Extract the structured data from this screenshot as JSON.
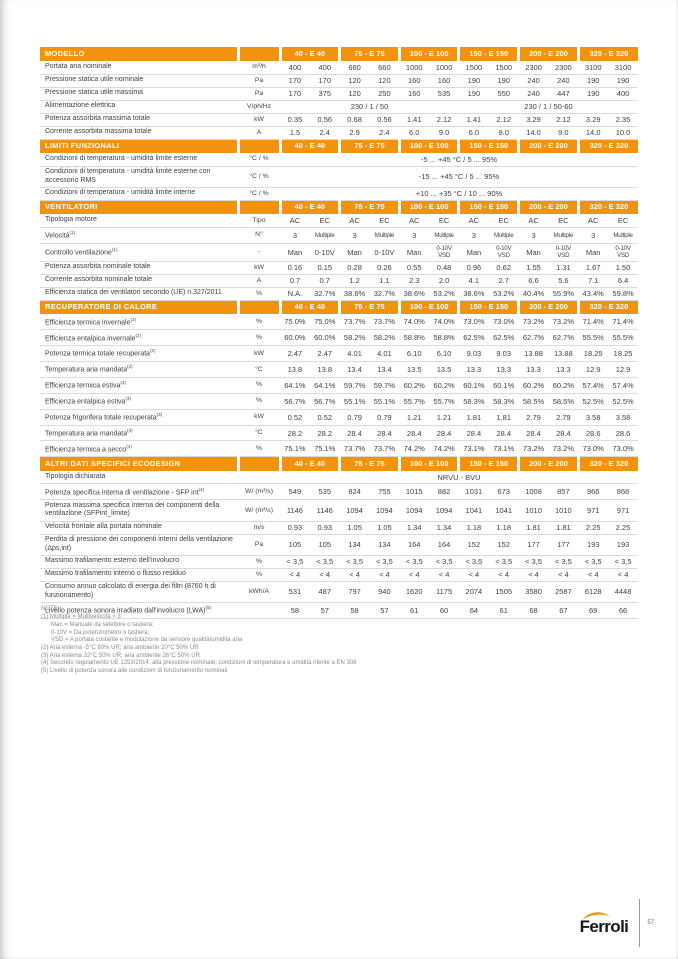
{
  "colors": {
    "accent_orange": "#F1930E",
    "header_text": "#FFFFFF",
    "body_text": "#3F3F3F",
    "note_text": "#8A8A8A"
  },
  "table": {
    "col_groups": [
      "40 - E 40",
      "75 - E 75",
      "100 - E 100",
      "150 - E 150",
      "200 - E 200",
      "320 - E 320"
    ],
    "sections": [
      {
        "title": "MODELLO",
        "rows": [
          {
            "label": "Portata aria nominale",
            "unit": "m³/h",
            "values": [
              "400",
              "400",
              "660",
              "660",
              "1000",
              "1000",
              "1500",
              "1500",
              "2300",
              "2300",
              "3100",
              "3100"
            ]
          },
          {
            "label": "Pressione statica utile nominale",
            "unit": "Pa",
            "values": [
              "170",
              "170",
              "120",
              "120",
              "160",
              "160",
              "190",
              "190",
              "240",
              "240",
              "190",
              "190"
            ]
          },
          {
            "label": "Pressione statica utile massima",
            "unit": "Pa",
            "values": [
              "170",
              "375",
              "120",
              "250",
              "160",
              "535",
              "190",
              "550",
              "240",
              "447",
              "190",
              "400"
            ]
          },
          {
            "label": "Alimentazione elettrica",
            "unit": "V/ph/Hz",
            "merged": [
              {
                "span": 6,
                "text": "230 / 1 / 50"
              },
              {
                "span": 6,
                "text": "230 / 1 / 50-60"
              }
            ]
          },
          {
            "label": "Potenza assorbita massima totale",
            "unit": "kW",
            "values": [
              "0.35",
              "0.56",
              "0.68",
              "0.56",
              "1.41",
              "2.12",
              "1.41",
              "2.12",
              "3.29",
              "2.12",
              "3.29",
              "2.35"
            ]
          },
          {
            "label": "Corrente assorbita massima totale",
            "unit": "A",
            "values": [
              "1.5",
              "2.4",
              "2.9",
              "2.4",
              "6.0",
              "9.0",
              "6.0",
              "9.0",
              "14.0",
              "9.0",
              "14.0",
              "10.0"
            ]
          }
        ]
      },
      {
        "title": "LIMITI FUNZIONALI",
        "rows": [
          {
            "label": "Condizioni di temperatura - umidità limite esterne",
            "unit": "°C / %",
            "merged": [
              {
                "span": 12,
                "text": "-5 ... +45 °C / 5 ... 95%"
              }
            ]
          },
          {
            "label": "Condizioni di temperatura - umidità limite esterne con accessorio RMS",
            "unit": "°C / %",
            "merged": [
              {
                "span": 12,
                "text": "-15 ... +45 °C / 5 ... 95%"
              }
            ]
          },
          {
            "label": "Condizioni di temperatura - umidità limite interne",
            "unit": "°C / %",
            "merged": [
              {
                "span": 12,
                "text": "+10 ... +35 °C / 10 ... 90%"
              }
            ]
          }
        ]
      },
      {
        "title": "VENTILATORI",
        "rows": [
          {
            "label": "Tipologia motore",
            "unit": "Tipo",
            "values": [
              "AC",
              "EC",
              "AC",
              "EC",
              "AC",
              "EC",
              "AC",
              "EC",
              "AC",
              "EC",
              "AC",
              "EC"
            ]
          },
          {
            "label": "Velocità",
            "sup": "(1)",
            "unit": "N°",
            "values": [
              "3",
              "Multiple",
              "3",
              "Multiple",
              "3",
              "Multiple",
              "3",
              "Multiple",
              "3",
              "Multiple",
              "3",
              "Multiple"
            ]
          },
          {
            "label": "Controllo ventilazione",
            "sup": "(1)",
            "unit": "-",
            "values": [
              "Man",
              "0-10V",
              "Man",
              "0-10V",
              "Man",
              "0-10V VSD",
              "Man",
              "0-10V VSD",
              "Man",
              "0-10V VSD",
              "Man",
              "0-10V VSD"
            ]
          },
          {
            "label": "Potenza assorbita nominale totale",
            "unit": "kW",
            "values": [
              "0.16",
              "0.15",
              "0.28",
              "0.26",
              "0.55",
              "0.48",
              "0.96",
              "0.62",
              "1.55",
              "1.31",
              "1.67",
              "1.50"
            ]
          },
          {
            "label": "Corrente assorbita nominale totale",
            "unit": "A",
            "values": [
              "0.7",
              "0.7",
              "1.2",
              "1.1",
              "2.3",
              "2.0",
              "4.1",
              "2.7",
              "6.6",
              "5.6",
              "7.1",
              "6.4"
            ]
          },
          {
            "label": "Efficienza statica dei ventilatori secondo (UE) n.327/2011",
            "unit": "%",
            "values": [
              "N.A.",
              "32.7%",
              "38.6%",
              "32.7%",
              "38.6%",
              "53.2%",
              "38.6%",
              "53.2%",
              "40.4%",
              "55.9%",
              "43.4%",
              "59.8%"
            ]
          }
        ]
      },
      {
        "title": "RECUPERATORE DI CALORE",
        "rows": [
          {
            "label": "Efficienza termica invernale",
            "sup": "(2)",
            "unit": "%",
            "values": [
              "75.0%",
              "75.0%",
              "73.7%",
              "73.7%",
              "74.0%",
              "74.0%",
              "73.0%",
              "73.0%",
              "73.2%",
              "73.2%",
              "71.4%",
              "71.4%"
            ]
          },
          {
            "label": "Efficienza entalpica invernale",
            "sup": "(2)",
            "unit": "%",
            "values": [
              "60.0%",
              "60.0%",
              "58.2%",
              "58.2%",
              "58.8%",
              "58.8%",
              "62.5%",
              "62.5%",
              "62.7%",
              "62.7%",
              "55.5%",
              "55.5%"
            ]
          },
          {
            "label": "Potenza termica totale recuperata",
            "sup": "(2)",
            "unit": "kW",
            "values": [
              "2.47",
              "2.47",
              "4.01",
              "4.01",
              "6.10",
              "6.10",
              "9.03",
              "9.03",
              "13.88",
              "13.88",
              "18.25",
              "18.25"
            ]
          },
          {
            "label": "Temperatura aria mandata",
            "sup": "(2)",
            "unit": "°C",
            "values": [
              "13.8",
              "13.8",
              "13.4",
              "13.4",
              "13.5",
              "13.5",
              "13.3",
              "13.3",
              "13.3",
              "13.3",
              "12.9",
              "12.9"
            ]
          },
          {
            "label": "Efficienza termica estiva",
            "sup": "(3)",
            "unit": "%",
            "values": [
              "64.1%",
              "64.1%",
              "59.7%",
              "59.7%",
              "60.2%",
              "60.2%",
              "60.1%",
              "60.1%",
              "60.2%",
              "60.2%",
              "57.4%",
              "57.4%"
            ]
          },
          {
            "label": "Efficienza entalpica estiva",
            "sup": "(3)",
            "unit": "%",
            "values": [
              "56.7%",
              "56.7%",
              "55.1%",
              "55.1%",
              "55.7%",
              "55.7%",
              "58.3%",
              "58.3%",
              "58.5%",
              "58.5%",
              "52.5%",
              "52.5%"
            ]
          },
          {
            "label": "Potenza frigorifera totale recuperata",
            "sup": "(3)",
            "unit": "kW",
            "values": [
              "0.52",
              "0.52",
              "0.79",
              "0.79",
              "1.21",
              "1.21",
              "1.81",
              "1.81",
              "2.79",
              "2.79",
              "3.58",
              "3.58"
            ]
          },
          {
            "label": "Temperatura aria mandata",
            "sup": "(3)",
            "unit": "°C",
            "values": [
              "28.2",
              "28.2",
              "28.4",
              "28.4",
              "28.4",
              "28.4",
              "28.4",
              "28.4",
              "28.4",
              "28.4",
              "28.6",
              "28.6"
            ]
          },
          {
            "label": "Efficienza termica a secco",
            "sup": "(4)",
            "unit": "%",
            "values": [
              "75.1%",
              "75.1%",
              "73.7%",
              "73.7%",
              "74.2%",
              "74.2%",
              "73.1%",
              "73.1%",
              "73.2%",
              "73.2%",
              "73.0%",
              "73.0%"
            ]
          }
        ]
      },
      {
        "title": "ALTRI DATI SPECIFICI ECODESIGN",
        "rows": [
          {
            "label": "Tipologia dichiarata",
            "unit": "",
            "merged": [
              {
                "span": 12,
                "text": "NRVU - BVU"
              }
            ]
          },
          {
            "label": "Potenza specifica interna di ventilazione - SFP int",
            "sup": "(4)",
            "unit": "W/ (m³/s)",
            "values": [
              "549",
              "535",
              "824",
              "755",
              "1015",
              "882",
              "1031",
              "673",
              "1008",
              "857",
              "966",
              "866"
            ]
          },
          {
            "label": "Potenza massima specifica interna dei componenti della ventilazione (SFPint_limite)",
            "unit": "W/ (m³/s)",
            "values": [
              "1146",
              "1146",
              "1094",
              "1094",
              "1094",
              "1094",
              "1041",
              "1041",
              "1010",
              "1010",
              "971",
              "971"
            ]
          },
          {
            "label": "Velocità frontale alla portata nominale",
            "unit": "m/s",
            "values": [
              "0.93",
              "0.93",
              "1.05",
              "1.05",
              "1.34",
              "1.34",
              "1.18",
              "1.18",
              "1.81",
              "1.81",
              "2.25",
              "2.25"
            ]
          },
          {
            "label": "Perdita di pressione dei componenti interni della ventilazione (Δps,int)",
            "unit": "Pa",
            "values": [
              "105",
              "105",
              "134",
              "134",
              "164",
              "164",
              "152",
              "152",
              "177",
              "177",
              "193",
              "193"
            ]
          },
          {
            "label": "Massimo trafilamento esterno dell'involucro",
            "unit": "%",
            "values": [
              "< 3,5",
              "< 3,5",
              "< 3,5",
              "< 3,5",
              "< 3,5",
              "< 3,5",
              "< 3,5",
              "< 3,5",
              "< 3,5",
              "< 3,5",
              "< 3,5",
              "< 3,5"
            ]
          },
          {
            "label": "Massimo trafilamento interno o flusso residuo",
            "unit": "%",
            "values": [
              "< 4",
              "< 4",
              "< 4",
              "< 4",
              "< 4",
              "< 4",
              "< 4",
              "< 4",
              "< 4",
              "< 4",
              "< 4",
              "< 4"
            ]
          },
          {
            "label": "Consumo annuo calcolato di energia dei filtri (8760 h di funzionamento)",
            "unit": "kWh/A",
            "values": [
              "531",
              "487",
              "797",
              "940",
              "1620",
              "1175",
              "2074",
              "1505",
              "3580",
              "2587",
              "6128",
              "4448"
            ]
          },
          {
            "label": "Livello potenza sonora irradiato dall'involucro (LWA)",
            "sup": "(5)",
            "unit": "",
            "values": [
              "58",
              "57",
              "58",
              "57",
              "61",
              "60",
              "64",
              "61",
              "68",
              "67",
              "69",
              "66"
            ]
          }
        ]
      }
    ]
  },
  "notes": {
    "title": "NOTE:",
    "lines": [
      {
        "text": "(1) Multiple = Multivelocità > 3",
        "indent": false
      },
      {
        "text": "Man = Manuale da selettore o tastiera;",
        "indent": true
      },
      {
        "text": "0-10V = Da potenziometro o tastiera;",
        "indent": true
      },
      {
        "text": "VSD = A portata costante e modulazione da sensore qualità/umidità aria",
        "indent": true
      },
      {
        "text": "(2) Aria esterna -5°C 80% UR; aria ambiente 20°C 50% UR",
        "indent": false
      },
      {
        "text": "(3) Aria esterna 32°C 50% UR; aria ambiente 26°C 50% UR",
        "indent": false
      },
      {
        "text": "(4) Secondo regolamento UE 1253/2014: alla pressione nominale; condizioni di temperatura e umidità riferite a EN 308",
        "indent": false
      },
      {
        "text": "(5) Livello di potenza sonora alle condizioni di funzionamento nominali",
        "indent": false
      }
    ]
  },
  "footer": {
    "logo_text": "Ferroli",
    "page_number": "57"
  }
}
